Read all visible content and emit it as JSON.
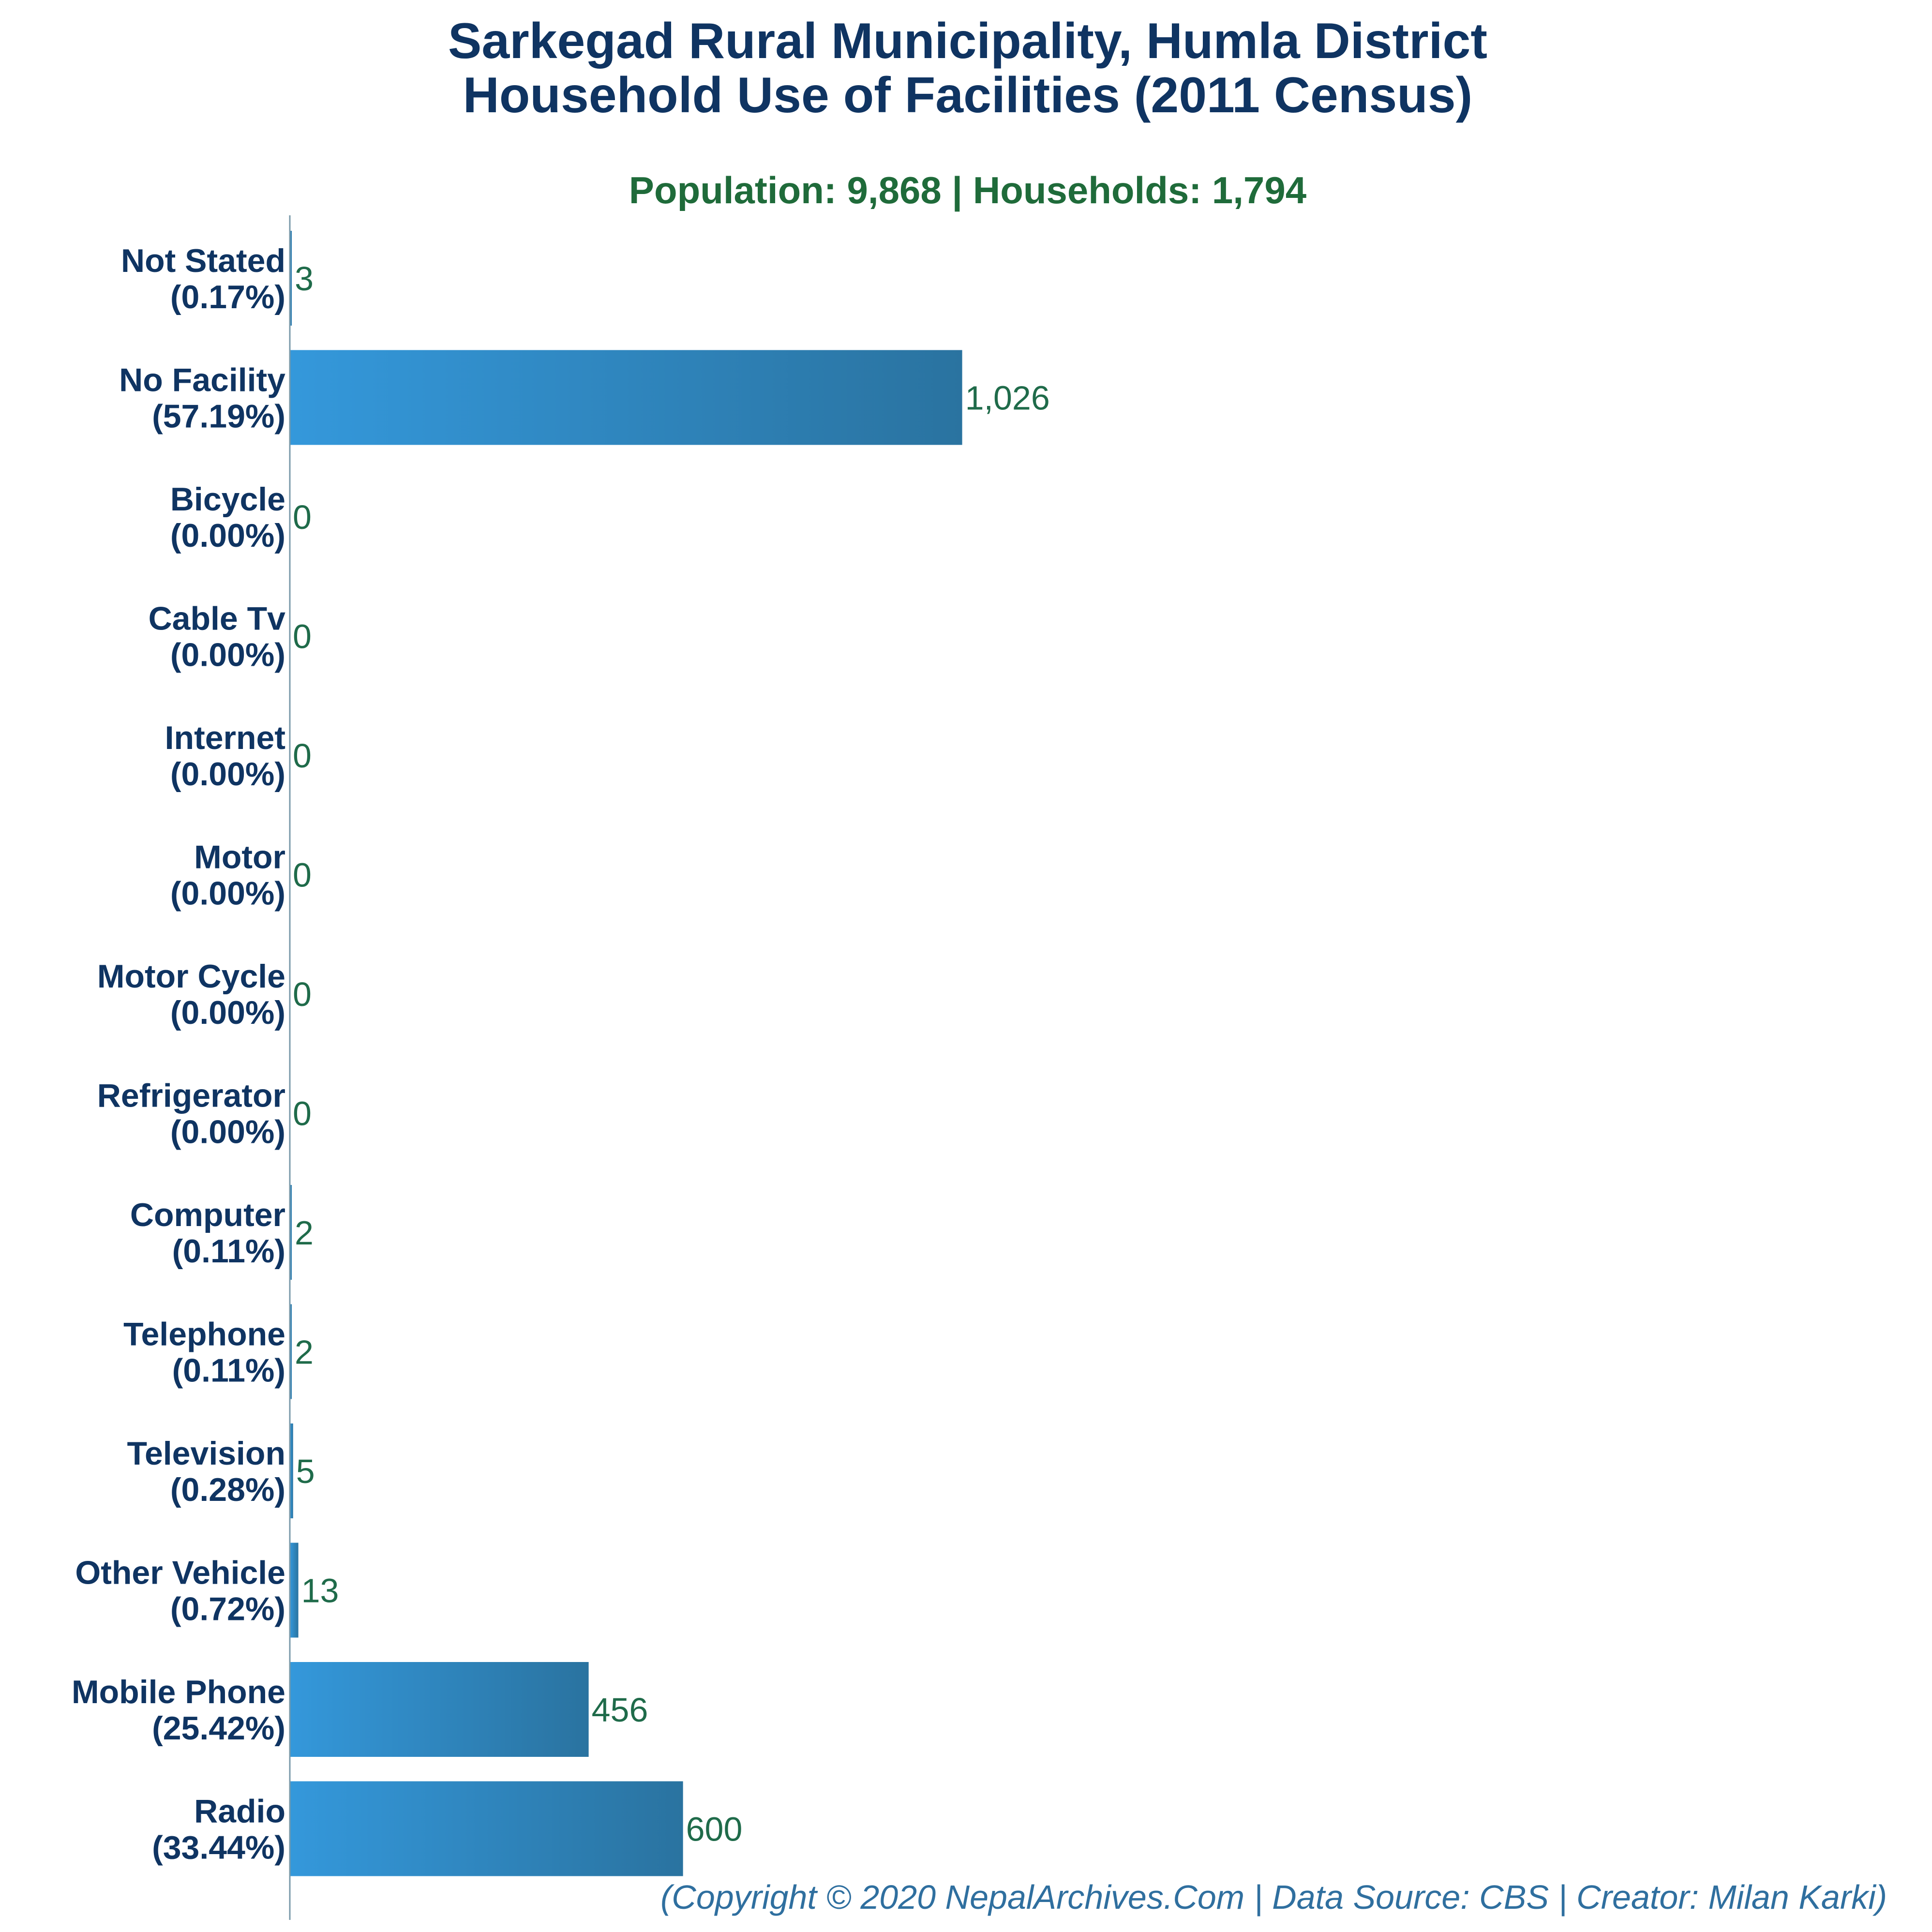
{
  "colors": {
    "title": "#0f3462",
    "subtitle": "#1f6b3a",
    "value_label": "#1f6b4a",
    "bar_light": "#3498db",
    "bar_dark": "#2a73a0",
    "footer": "#2f6f9f",
    "axis": "#7a9aaa"
  },
  "chart_data": {
    "type": "bar",
    "orientation": "horizontal",
    "title_line1": "Sarkegad Rural Municipality, Humla District",
    "title_line2": "Household Use of Facilities (2011 Census)",
    "subtitle": "Population: 9,868 | Households: 1,794",
    "footer": "(Copyright © 2020 NepalArchives.Com | Data Source: CBS | Creator: Milan Karki)",
    "categories": [
      {
        "name": "Not Stated",
        "pct": "(0.17%)",
        "value": 3,
        "value_label": "3"
      },
      {
        "name": "No Facility",
        "pct": "(57.19%)",
        "value": 1026,
        "value_label": "1,026"
      },
      {
        "name": "Bicycle",
        "pct": "(0.00%)",
        "value": 0,
        "value_label": "0"
      },
      {
        "name": "Cable Tv",
        "pct": "(0.00%)",
        "value": 0,
        "value_label": "0"
      },
      {
        "name": "Internet",
        "pct": "(0.00%)",
        "value": 0,
        "value_label": "0"
      },
      {
        "name": "Motor",
        "pct": "(0.00%)",
        "value": 0,
        "value_label": "0"
      },
      {
        "name": "Motor Cycle",
        "pct": "(0.00%)",
        "value": 0,
        "value_label": "0"
      },
      {
        "name": "Refrigerator",
        "pct": "(0.00%)",
        "value": 0,
        "value_label": "0"
      },
      {
        "name": "Computer",
        "pct": "(0.11%)",
        "value": 2,
        "value_label": "2"
      },
      {
        "name": "Telephone",
        "pct": "(0.11%)",
        "value": 2,
        "value_label": "2"
      },
      {
        "name": "Television",
        "pct": "(0.28%)",
        "value": 5,
        "value_label": "5"
      },
      {
        "name": "Other Vehicle",
        "pct": "(0.72%)",
        "value": 13,
        "value_label": "13"
      },
      {
        "name": "Mobile Phone",
        "pct": "(25.42%)",
        "value": 456,
        "value_label": "456"
      },
      {
        "name": "Radio",
        "pct": "(33.44%)",
        "value": 600,
        "value_label": "600"
      }
    ],
    "xlim": [
      0,
      2500
    ],
    "grid": false,
    "legend": "none"
  }
}
